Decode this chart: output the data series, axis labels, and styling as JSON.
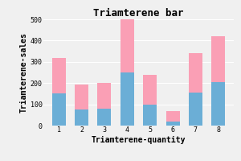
{
  "title": "Triamterene bar",
  "xlabel": "Triamterene-quantity",
  "ylabel": "Triamterene-sales",
  "categories": [
    1,
    2,
    3,
    4,
    5,
    6,
    7,
    8
  ],
  "blue_values": [
    150,
    75,
    80,
    250,
    100,
    20,
    155,
    205
  ],
  "pink_values": [
    170,
    120,
    120,
    250,
    140,
    50,
    185,
    215
  ],
  "blue_color": "#6baed6",
  "pink_color": "#fa9fb5",
  "ylim": [
    0,
    500
  ],
  "yticks": [
    0,
    100,
    200,
    300,
    400,
    500
  ],
  "bg_color": "#f0f0f0",
  "title_fontsize": 9,
  "label_fontsize": 7,
  "tick_fontsize": 6,
  "bar_width": 0.6
}
